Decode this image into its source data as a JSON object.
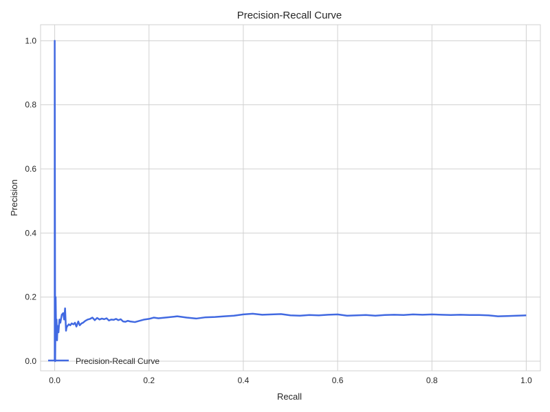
{
  "chart_data": {
    "type": "line",
    "title": "Precision-Recall Curve",
    "xlabel": "Recall",
    "ylabel": "Precision",
    "xlim": [
      -0.03,
      1.03
    ],
    "ylim": [
      -0.03,
      1.05
    ],
    "xticks": [
      "0.0",
      "0.2",
      "0.4",
      "0.6",
      "0.8",
      "1.0"
    ],
    "yticks": [
      "0.0",
      "0.2",
      "0.4",
      "0.6",
      "0.8",
      "1.0"
    ],
    "grid": true,
    "legend": {
      "position": "lower-left",
      "entries": [
        "Precision-Recall Curve"
      ]
    },
    "series": [
      {
        "name": "Precision-Recall Curve",
        "color": "#4169e1",
        "x": [
          0.0,
          0.0,
          0.001,
          0.002,
          0.003,
          0.004,
          0.005,
          0.006,
          0.008,
          0.01,
          0.012,
          0.015,
          0.018,
          0.02,
          0.022,
          0.024,
          0.025,
          0.027,
          0.03,
          0.033,
          0.036,
          0.04,
          0.043,
          0.046,
          0.05,
          0.053,
          0.057,
          0.06,
          0.065,
          0.07,
          0.075,
          0.08,
          0.085,
          0.09,
          0.095,
          0.1,
          0.105,
          0.11,
          0.115,
          0.12,
          0.125,
          0.13,
          0.135,
          0.14,
          0.145,
          0.15,
          0.155,
          0.16,
          0.17,
          0.18,
          0.19,
          0.2,
          0.21,
          0.22,
          0.24,
          0.26,
          0.28,
          0.3,
          0.32,
          0.34,
          0.36,
          0.38,
          0.4,
          0.42,
          0.44,
          0.46,
          0.48,
          0.5,
          0.52,
          0.54,
          0.56,
          0.58,
          0.6,
          0.62,
          0.64,
          0.66,
          0.68,
          0.7,
          0.72,
          0.74,
          0.76,
          0.78,
          0.8,
          0.82,
          0.84,
          0.86,
          0.88,
          0.9,
          0.92,
          0.94,
          0.96,
          0.98,
          1.0
        ],
        "y": [
          0.0,
          1.0,
          0.0,
          0.2,
          0.09,
          0.13,
          0.065,
          0.11,
          0.09,
          0.13,
          0.12,
          0.145,
          0.15,
          0.13,
          0.165,
          0.095,
          0.105,
          0.11,
          0.115,
          0.112,
          0.118,
          0.115,
          0.12,
          0.108,
          0.124,
          0.112,
          0.118,
          0.12,
          0.126,
          0.13,
          0.132,
          0.136,
          0.128,
          0.135,
          0.13,
          0.133,
          0.131,
          0.134,
          0.127,
          0.13,
          0.129,
          0.132,
          0.128,
          0.131,
          0.124,
          0.123,
          0.126,
          0.124,
          0.122,
          0.126,
          0.13,
          0.132,
          0.136,
          0.134,
          0.137,
          0.14,
          0.136,
          0.133,
          0.137,
          0.138,
          0.14,
          0.142,
          0.146,
          0.148,
          0.145,
          0.146,
          0.147,
          0.143,
          0.142,
          0.144,
          0.143,
          0.145,
          0.146,
          0.142,
          0.143,
          0.144,
          0.142,
          0.144,
          0.145,
          0.144,
          0.146,
          0.145,
          0.146,
          0.145,
          0.144,
          0.145,
          0.144,
          0.144,
          0.143,
          0.14,
          0.141,
          0.142,
          0.143
        ]
      }
    ]
  }
}
